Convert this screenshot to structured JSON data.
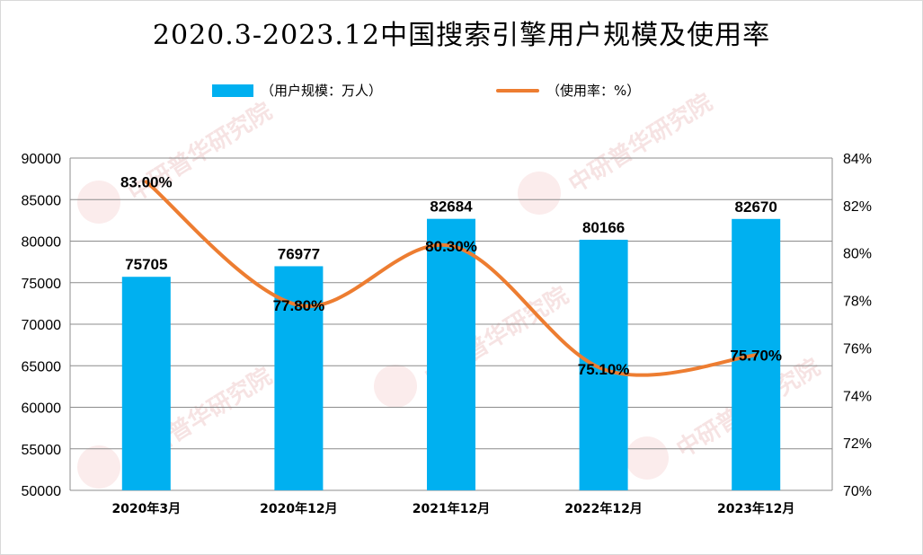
{
  "title": "2020.3-2023.12中国搜索引擎用户规模及使用率",
  "legend": {
    "bar_label": "（用户规模：万人）",
    "line_label": "（使用率：%）"
  },
  "watermark": "中研普华研究院",
  "colors": {
    "bar": "#00B0F0",
    "line": "#ED7D31"
  },
  "chart_data": {
    "type": "bar",
    "categories": [
      "2020年3月",
      "2020年12月",
      "2021年12月",
      "2022年12月",
      "2023年12月"
    ],
    "series": [
      {
        "name": "（用户规模：万人）",
        "type": "bar",
        "axis": "left",
        "values": [
          75705,
          76977,
          82684,
          80166,
          82670
        ],
        "labels": [
          "75705",
          "76977",
          "82684",
          "80166",
          "82670"
        ]
      },
      {
        "name": "（使用率：%）",
        "type": "line",
        "axis": "right",
        "values": [
          83.0,
          77.8,
          80.3,
          75.1,
          75.7
        ],
        "labels": [
          "83.00%",
          "77.80%",
          "80.30%",
          "75.10%",
          "75.70%"
        ]
      }
    ],
    "y_left": {
      "ylim": [
        50000,
        90000
      ],
      "ticks": [
        "50000",
        "55000",
        "60000",
        "65000",
        "70000",
        "75000",
        "80000",
        "85000",
        "90000"
      ]
    },
    "y_right": {
      "ylim": [
        70,
        84
      ],
      "ticks": [
        "70%",
        "72%",
        "74%",
        "76%",
        "78%",
        "80%",
        "82%",
        "84%"
      ]
    },
    "grid": "horizontal",
    "legend_position": "top"
  }
}
